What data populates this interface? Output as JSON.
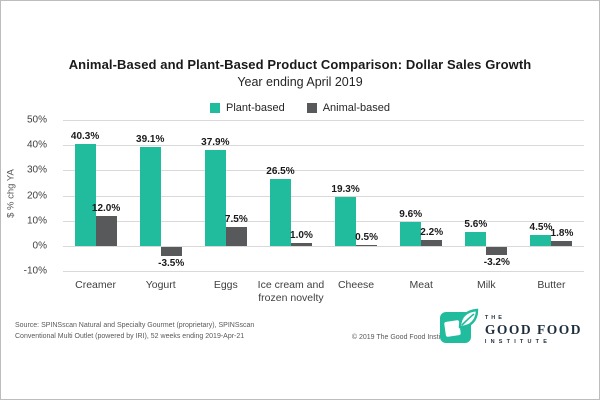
{
  "chart": {
    "title": "Animal-Based and Plant-Based Product Comparison: Dollar Sales Growth",
    "subtitle": "Year ending April 2019"
  },
  "chart_data": {
    "type": "bar",
    "categories": [
      "Creamer",
      "Yogurt",
      "Eggs",
      "Ice cream and frozen novelty",
      "Cheese",
      "Meat",
      "Milk",
      "Butter"
    ],
    "series": [
      {
        "name": "Plant-based",
        "color": "#21BC9E",
        "values": [
          40.3,
          39.1,
          37.9,
          26.5,
          19.3,
          9.6,
          5.6,
          4.5
        ]
      },
      {
        "name": "Animal-based",
        "color": "#58595B",
        "values": [
          12.0,
          -3.5,
          7.5,
          1.0,
          0.5,
          2.2,
          -3.2,
          1.8
        ]
      }
    ],
    "ylabel": "$ % chg YA",
    "ylim": [
      -10,
      50
    ],
    "ytick_step": 10,
    "ytick_suffix": "%",
    "grid": true,
    "legend_position": "top",
    "value_labels": true
  },
  "footer": {
    "source_line1": "Source: SPINSscan Natural and Specialty Gourmet (proprietary), SPINSscan",
    "source_line2": "Conventional Multi Outlet (powered by IRI), 52 weeks ending 2019-Apr-21",
    "copyright": "© 2019 The Good Food Institute, Inc.",
    "logo": {
      "line1": "THE",
      "line2": "GOOD FOOD",
      "line3": "INSTITUTE"
    }
  },
  "colors": {
    "plant": "#21BC9E",
    "animal": "#58595B",
    "gridline": "#D9D9D9",
    "logo_navy": "#1D2F3E"
  }
}
